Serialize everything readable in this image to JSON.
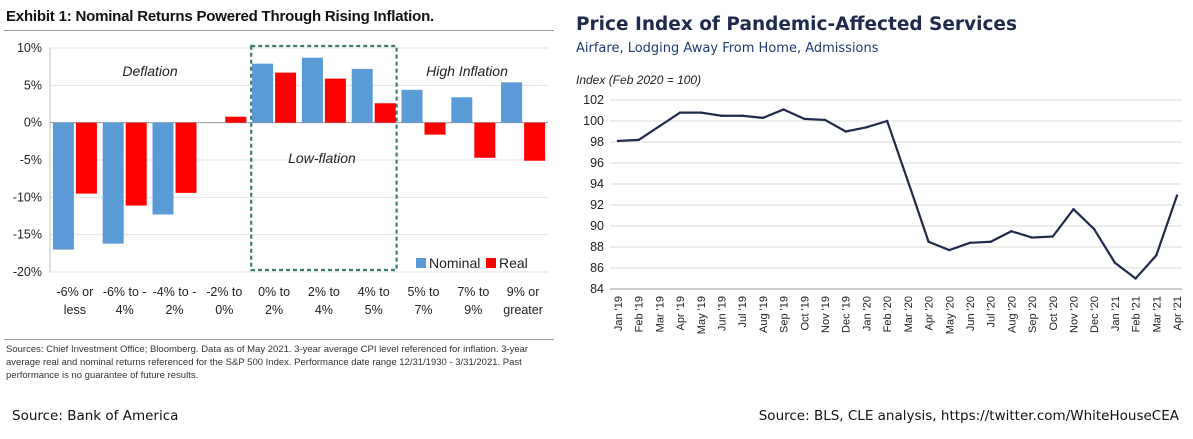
{
  "left": {
    "title": "Exhibit 1: Nominal Returns Powered Through Rising Inflation.",
    "footnote": "Sources: Chief Investment Office; Bloomberg. Data as of May 2021. 3-year average CPI level referenced for inflation. 3-year average real and nominal returns referenced for the S&P 500 Index. Performance date range 12/31/1930 - 3/31/2021. Past performance is no guarantee of future results.",
    "source": "Source: Bank of America",
    "region_labels": [
      "Deflation",
      "Low-flation",
      "High Inflation"
    ]
  },
  "right": {
    "title": "Price Index of Pandemic-Affected Services",
    "subtitle": "Airfare, Lodging Away From Home, Admissions",
    "source": "Source: BLS, CLE analysis, https://twitter.com/WhiteHouseCEA"
  },
  "chart_data": [
    {
      "type": "bar",
      "title": "Exhibit 1: Nominal Returns Powered Through Rising Inflation.",
      "categories": [
        "-6% or less",
        "-6% to -4%",
        "-4% to -2%",
        "-2% to 0%",
        "0% to 2%",
        "2% to 4%",
        "4% to 5%",
        "5% to 7%",
        "7% to 9%",
        "9% or greater"
      ],
      "category_lines": [
        [
          "-6% or",
          "less"
        ],
        [
          "-6% to -",
          "4%"
        ],
        [
          "-4% to -",
          "2%"
        ],
        [
          "-2% to",
          "0%"
        ],
        [
          "0% to",
          "2%"
        ],
        [
          "2% to",
          "4%"
        ],
        [
          "4% to",
          "5%"
        ],
        [
          "5% to",
          "7%"
        ],
        [
          "7% to",
          "9%"
        ],
        [
          "9% or",
          "greater"
        ]
      ],
      "series": [
        {
          "name": "Nominal",
          "color": "#5b9bd5",
          "values": [
            -17,
            -16.2,
            -12.3,
            null,
            7.9,
            8.7,
            7.2,
            4.4,
            3.4,
            5.4
          ]
        },
        {
          "name": "Real",
          "color": "#ff0000",
          "values": [
            -9.5,
            -11.1,
            -9.4,
            0.8,
            6.7,
            5.9,
            2.6,
            -1.6,
            -4.7,
            -5.1
          ]
        }
      ],
      "ylim": [
        -20,
        10
      ],
      "yticks": [
        10,
        5,
        0,
        -5,
        -10,
        -15,
        -20
      ],
      "ytick_labels": [
        "10%",
        "5%",
        "0%",
        "-5%",
        "-10%",
        "-15%",
        "-20%"
      ],
      "legend": "bottom-right",
      "annotations": [
        "Deflation",
        "Low-flation",
        "High Inflation"
      ]
    },
    {
      "type": "line",
      "title": "Price Index of Pandemic-Affected Services",
      "subtitle": "Airfare, Lodging Away From Home, Admissions",
      "ylabel": "Index (Feb 2020 = 100)",
      "x": [
        "Jan '19",
        "Feb '19",
        "Mar '19",
        "Apr '19",
        "May '19",
        "Jun '19",
        "Jul '19",
        "Aug '19",
        "Sep '19",
        "Oct '19",
        "Nov '19",
        "Dec '19",
        "Jan '20",
        "Feb '20",
        "Mar '20",
        "Apr '20",
        "May '20",
        "Jun '20",
        "Jul '20",
        "Aug '20",
        "Sep '20",
        "Oct '20",
        "Nov '20",
        "Dec '20",
        "Jan '21",
        "Feb '21",
        "Mar '21",
        "Apr '21"
      ],
      "series": [
        {
          "color": "#1f2a4d",
          "values": [
            98.1,
            98.2,
            99.5,
            100.8,
            100.8,
            100.5,
            100.5,
            100.3,
            101.1,
            100.2,
            100.1,
            99.0,
            99.4,
            100.0,
            94.3,
            88.5,
            87.7,
            88.4,
            88.5,
            89.5,
            88.9,
            89.0,
            91.6,
            89.7,
            86.5,
            85.0,
            87.2,
            92.9
          ]
        }
      ],
      "ylim": [
        84,
        102
      ],
      "yticks": [
        84,
        86,
        88,
        90,
        92,
        94,
        96,
        98,
        100,
        102
      ],
      "grid": true
    }
  ]
}
